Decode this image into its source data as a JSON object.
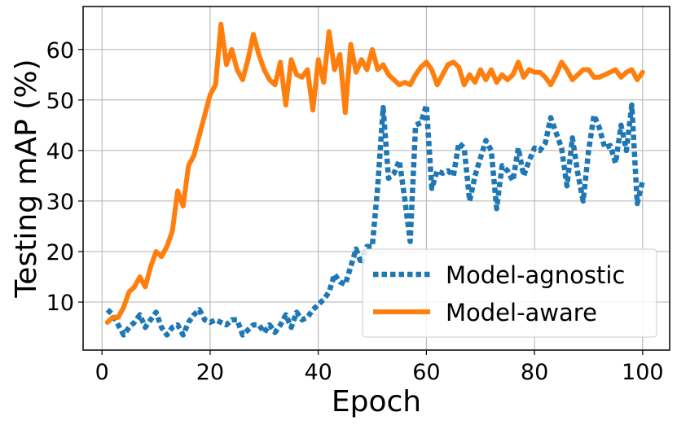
{
  "chart_data": {
    "type": "line",
    "xlabel": "Epoch",
    "ylabel": "Testing mAP (%)",
    "xlim": [
      -3.5,
      105
    ],
    "ylim": [
      0.5,
      68.5
    ],
    "xticks": [
      0,
      20,
      40,
      60,
      80,
      100
    ],
    "yticks": [
      10,
      20,
      30,
      40,
      50,
      60
    ],
    "grid": true,
    "legend_position": "lower-right",
    "series": [
      {
        "name": "Model-agnostic",
        "color": "#1f77b4",
        "style": "dotted",
        "x": [
          1,
          2,
          3,
          4,
          5,
          6,
          7,
          8,
          9,
          10,
          11,
          12,
          13,
          14,
          15,
          16,
          17,
          18,
          19,
          20,
          21,
          22,
          23,
          24,
          25,
          26,
          27,
          28,
          29,
          30,
          31,
          32,
          33,
          34,
          35,
          36,
          37,
          38,
          39,
          40,
          41,
          42,
          43,
          44,
          45,
          46,
          47,
          48,
          49,
          50,
          51,
          52,
          53,
          54,
          55,
          56,
          57,
          58,
          59,
          60,
          61,
          62,
          63,
          64,
          65,
          66,
          67,
          68,
          69,
          70,
          71,
          72,
          73,
          74,
          75,
          76,
          77,
          78,
          79,
          80,
          81,
          82,
          83,
          84,
          85,
          86,
          87,
          88,
          89,
          90,
          91,
          92,
          93,
          94,
          95,
          96,
          97,
          98,
          99,
          100
        ],
        "values": [
          8.5,
          7.5,
          5.5,
          3.5,
          5.0,
          6.0,
          7.5,
          5.0,
          6.5,
          8.0,
          5.0,
          3.5,
          5.0,
          5.5,
          3.5,
          6.0,
          7.5,
          8.5,
          6.5,
          6.0,
          6.5,
          6.0,
          5.5,
          6.5,
          6.5,
          3.5,
          4.5,
          5.5,
          5.5,
          4.0,
          5.5,
          4.0,
          5.5,
          7.5,
          5.0,
          8.0,
          6.5,
          7.0,
          8.5,
          9.5,
          10.5,
          12.0,
          15.5,
          14.0,
          13.5,
          17.0,
          20.5,
          17.5,
          21.0,
          21.0,
          33.0,
          48.5,
          34.5,
          35.5,
          38.0,
          30.5,
          22.0,
          45.0,
          45.5,
          49.0,
          32.5,
          36.0,
          35.5,
          36.0,
          35.0,
          41.5,
          40.5,
          30.0,
          35.0,
          38.5,
          42.0,
          40.0,
          28.5,
          37.0,
          36.0,
          34.0,
          40.5,
          35.0,
          38.0,
          40.5,
          40.0,
          41.5,
          46.5,
          43.5,
          40.5,
          33.0,
          42.5,
          35.5,
          30.0,
          40.0,
          47.0,
          44.5,
          40.5,
          41.0,
          37.5,
          45.0,
          40.0,
          49.0,
          29.5,
          34.0
        ]
      },
      {
        "name": "Model-aware",
        "color": "#ff7f0e",
        "style": "solid",
        "x": [
          1,
          2,
          3,
          4,
          5,
          6,
          7,
          8,
          9,
          10,
          11,
          12,
          13,
          14,
          15,
          16,
          17,
          18,
          19,
          20,
          21,
          22,
          23,
          24,
          25,
          26,
          27,
          28,
          29,
          30,
          31,
          32,
          33,
          34,
          35,
          36,
          37,
          38,
          39,
          40,
          41,
          42,
          43,
          44,
          45,
          46,
          47,
          48,
          49,
          50,
          51,
          52,
          53,
          54,
          55,
          56,
          57,
          58,
          59,
          60,
          61,
          62,
          63,
          64,
          65,
          66,
          67,
          68,
          69,
          70,
          71,
          72,
          73,
          74,
          75,
          76,
          77,
          78,
          79,
          80,
          81,
          82,
          83,
          84,
          85,
          86,
          87,
          88,
          89,
          90,
          91,
          92,
          93,
          94,
          95,
          96,
          97,
          98,
          99,
          100
        ],
        "values": [
          6.0,
          7.0,
          7.0,
          9.0,
          12.0,
          13.0,
          15.0,
          13.0,
          17.0,
          20.0,
          19.0,
          21.0,
          24.0,
          32.0,
          29.0,
          37.0,
          39.0,
          43.0,
          47.0,
          51.0,
          53.0,
          65.0,
          57.0,
          60.0,
          56.0,
          54.0,
          58.0,
          63.0,
          59.0,
          56.0,
          54.0,
          53.0,
          57.5,
          49.0,
          58.0,
          55.0,
          54.5,
          56.0,
          48.0,
          58.0,
          53.5,
          63.5,
          56.0,
          59.0,
          47.5,
          61.0,
          55.5,
          58.0,
          56.0,
          60.0,
          56.0,
          57.0,
          55.0,
          54.0,
          53.0,
          53.5,
          53.0,
          55.0,
          56.5,
          57.5,
          56.0,
          53.0,
          55.0,
          57.0,
          57.5,
          56.5,
          53.0,
          55.0,
          53.5,
          56.0,
          54.0,
          56.0,
          53.5,
          55.0,
          54.0,
          55.0,
          57.5,
          54.5,
          56.0,
          55.5,
          55.5,
          54.5,
          53.0,
          55.0,
          57.5,
          56.0,
          54.0,
          55.0,
          56.0,
          56.0,
          54.5,
          54.5,
          55.0,
          55.5,
          56.0,
          54.5,
          55.5,
          56.0,
          54.0,
          55.5
        ]
      }
    ]
  }
}
